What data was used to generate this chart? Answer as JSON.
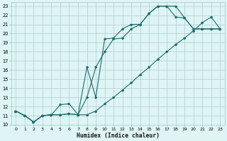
{
  "bg_color": "#dff4f4",
  "grid_color": "#aacfcf",
  "line_color": "#1e6b6b",
  "xlabel": "Humidex (Indice chaleur)",
  "xlim": [
    -0.5,
    23.5
  ],
  "ylim": [
    10,
    23.4
  ],
  "xticks": [
    0,
    1,
    2,
    3,
    4,
    5,
    6,
    7,
    8,
    9,
    10,
    11,
    12,
    13,
    14,
    15,
    16,
    17,
    18,
    19,
    20,
    21,
    22,
    23
  ],
  "yticks": [
    10,
    11,
    12,
    13,
    14,
    15,
    16,
    17,
    18,
    19,
    20,
    21,
    22,
    23
  ],
  "line1_x": [
    0,
    1,
    2,
    3,
    4,
    5,
    6,
    7,
    8,
    9,
    10,
    11,
    12,
    13,
    14,
    15,
    16,
    17,
    18,
    19,
    20,
    21,
    22,
    23
  ],
  "line1_y": [
    11.5,
    11.0,
    10.3,
    11.0,
    11.1,
    12.2,
    12.3,
    11.1,
    13.0,
    16.3,
    18.0,
    19.4,
    19.5,
    20.5,
    21.0,
    22.2,
    23.0,
    23.0,
    23.0,
    21.7,
    20.5,
    20.5,
    20.5,
    20.5
  ],
  "line2_x": [
    0,
    1,
    2,
    3,
    4,
    5,
    6,
    7,
    8,
    9,
    10,
    11,
    12,
    13,
    14,
    15,
    16,
    17,
    18,
    19,
    20,
    21,
    22,
    23
  ],
  "line2_y": [
    11.5,
    11.0,
    10.3,
    11.0,
    11.1,
    11.1,
    11.2,
    11.1,
    16.3,
    13.0,
    19.4,
    19.5,
    20.5,
    21.0,
    21.0,
    22.2,
    23.0,
    23.0,
    21.8,
    21.7,
    20.5,
    20.5,
    20.5,
    20.5
  ],
  "line3_x": [
    0,
    1,
    2,
    3,
    4,
    5,
    6,
    7,
    8,
    9,
    10,
    11,
    12,
    13,
    14,
    15,
    16,
    17,
    18,
    19,
    20,
    21,
    22,
    23
  ],
  "line3_y": [
    11.5,
    11.0,
    10.3,
    11.0,
    11.1,
    11.1,
    11.2,
    11.1,
    11.1,
    11.5,
    12.3,
    13.0,
    13.8,
    14.6,
    15.5,
    16.3,
    17.2,
    18.0,
    18.8,
    19.5,
    20.3,
    21.2,
    21.8,
    20.5
  ]
}
